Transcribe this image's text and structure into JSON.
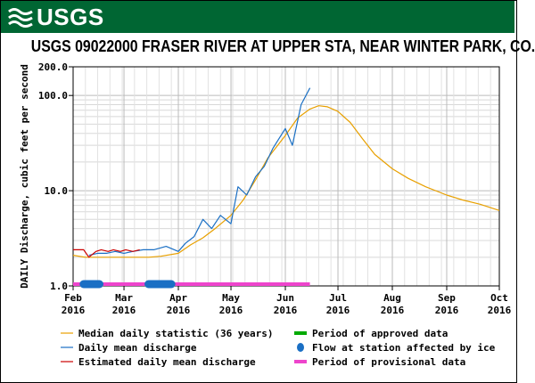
{
  "header": {
    "agency": "USGS",
    "title": "USGS 09022000 FRASER RIVER AT UPPER STA, NEAR WINTER PARK, CO."
  },
  "colors": {
    "banner": "#006633",
    "median": "#e8a000",
    "daily": "#1a6fc4",
    "estimated": "#cc0000",
    "approved": "#00aa00",
    "ice": "#1a6fc4",
    "provisional": "#ee44cc"
  },
  "chart_data": {
    "type": "line",
    "title": "USGS 09022000 FRASER RIVER AT UPPER STA, NEAR WINTER PARK, CO.",
    "ylabel": "DAILY Discharge, cubic feet per second",
    "xlabel": "",
    "yscale": "log",
    "ylim": [
      1.0,
      200.0
    ],
    "yticks": [
      "1.0",
      "10.0",
      "100.0",
      "200.0"
    ],
    "xlim": [
      "2016-02-01",
      "2016-10-01"
    ],
    "xticks": [
      {
        "month": "Feb",
        "year": "2016"
      },
      {
        "month": "Mar",
        "year": "2016"
      },
      {
        "month": "Apr",
        "year": "2016"
      },
      {
        "month": "May",
        "year": "2016"
      },
      {
        "month": "Jun",
        "year": "2016"
      },
      {
        "month": "Jul",
        "year": "2016"
      },
      {
        "month": "Aug",
        "year": "2016"
      },
      {
        "month": "Sep",
        "year": "2016"
      },
      {
        "month": "Oct",
        "year": "2016"
      }
    ],
    "grid": true,
    "legend_position": "bottom",
    "series": [
      {
        "name": "Median daily statistic (36 years)",
        "x": [
          "2016-02-01",
          "2016-02-08",
          "2016-02-15",
          "2016-02-22",
          "2016-03-01",
          "2016-03-08",
          "2016-03-15",
          "2016-03-22",
          "2016-04-01",
          "2016-04-08",
          "2016-04-15",
          "2016-04-22",
          "2016-05-01",
          "2016-05-08",
          "2016-05-15",
          "2016-05-22",
          "2016-06-01",
          "2016-06-08",
          "2016-06-15",
          "2016-06-20",
          "2016-06-25",
          "2016-07-01",
          "2016-07-08",
          "2016-07-15",
          "2016-07-22",
          "2016-08-01",
          "2016-08-10",
          "2016-08-20",
          "2016-09-01",
          "2016-09-10",
          "2016-09-20",
          "2016-10-01"
        ],
        "y": [
          2.1,
          2.0,
          2.0,
          2.0,
          2.0,
          2.0,
          2.0,
          2.05,
          2.2,
          2.7,
          3.2,
          4.0,
          5.5,
          8.0,
          13.0,
          22.0,
          38.0,
          58.0,
          72.0,
          78.0,
          76.0,
          68.0,
          52.0,
          35.0,
          24.0,
          17.0,
          13.5,
          11.0,
          9.0,
          8.0,
          7.2,
          6.2
        ]
      },
      {
        "name": "Daily mean discharge",
        "x": [
          "2016-02-10",
          "2016-02-15",
          "2016-02-20",
          "2016-02-25",
          "2016-03-01",
          "2016-03-06",
          "2016-03-12",
          "2016-03-18",
          "2016-03-25",
          "2016-04-01",
          "2016-04-05",
          "2016-04-10",
          "2016-04-15",
          "2016-04-20",
          "2016-04-25",
          "2016-05-01",
          "2016-05-05",
          "2016-05-10",
          "2016-05-15",
          "2016-05-20",
          "2016-05-25",
          "2016-06-01",
          "2016-06-05",
          "2016-06-10",
          "2016-06-15"
        ],
        "y": [
          2.1,
          2.2,
          2.2,
          2.3,
          2.2,
          2.3,
          2.4,
          2.4,
          2.6,
          2.3,
          2.8,
          3.3,
          5.0,
          4.0,
          5.5,
          4.5,
          11.0,
          9.0,
          14.0,
          18.0,
          28.0,
          45.0,
          30.0,
          80.0,
          120.0
        ]
      },
      {
        "name": "Estimated daily mean discharge",
        "x": [
          "2016-02-01",
          "2016-02-03",
          "2016-02-07",
          "2016-02-10",
          "2016-02-14",
          "2016-02-17",
          "2016-02-21",
          "2016-02-24",
          "2016-02-28",
          "2016-03-02",
          "2016-03-06",
          "2016-03-10"
        ],
        "y": [
          2.4,
          2.4,
          2.4,
          2.0,
          2.3,
          2.4,
          2.3,
          2.4,
          2.3,
          2.4,
          2.3,
          2.4
        ]
      }
    ],
    "periods": [
      {
        "name": "Period of approved data",
        "x": []
      },
      {
        "name": "Flow at station affected by ice",
        "x": [
          [
            "2016-02-07",
            "2016-02-16"
          ],
          [
            "2016-03-15",
            "2016-03-28"
          ]
        ]
      },
      {
        "name": "Period of provisional data",
        "x": [
          [
            "2016-02-01",
            "2016-06-15"
          ]
        ]
      }
    ]
  }
}
